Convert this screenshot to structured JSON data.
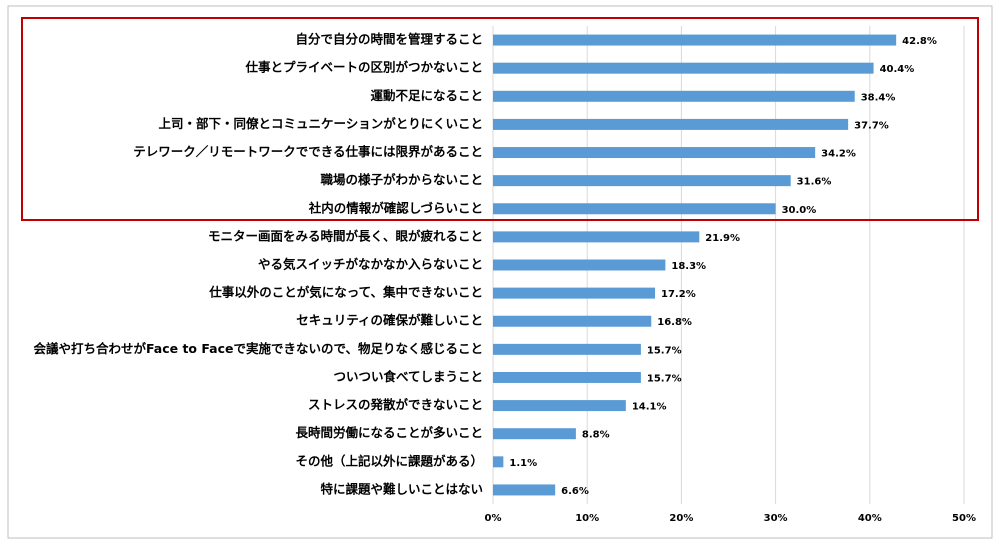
{
  "chart_data": {
    "type": "bar",
    "orientation": "horizontal",
    "categories": [
      "自分で自分の時間を管理すること",
      "仕事とプライベートの区別がつかないこと",
      "運動不足になること",
      "上司・部下・同僚とコミュニケーションがとりにくいこと",
      "テレワーク／リモートワークでできる仕事には限界があること",
      "職場の様子がわからないこと",
      "社内の情報が確認しづらいこと",
      "モニター画面をみる時間が長く、眼が疲れること",
      "やる気スイッチがなかなか入らないこと",
      "仕事以外のことが気になって、集中できないこと",
      "セキュリティの確保が難しいこと",
      "会議や打ち合わせがFace to Faceで実施できないので、物足りなく感じること",
      "ついつい食べてしまうこと",
      "ストレスの発散ができないこと",
      "長時間労働になることが多いこと",
      "その他（上記以外に課題がある）",
      "特に課題や難しいことはない"
    ],
    "values": [
      42.8,
      40.4,
      38.4,
      37.7,
      34.2,
      31.6,
      30.0,
      21.9,
      18.3,
      17.2,
      16.8,
      15.7,
      15.7,
      14.1,
      8.8,
      1.1,
      6.6
    ],
    "value_labels": [
      "42.8%",
      "40.4%",
      "38.4%",
      "37.7%",
      "34.2%",
      "31.6%",
      "30.0%",
      "21.9%",
      "18.3%",
      "17.2%",
      "16.8%",
      "15.7%",
      "15.7%",
      "14.1%",
      "8.8%",
      "1.1%",
      "6.6%"
    ],
    "color": "#5b9bd5",
    "xlim": [
      0,
      50
    ],
    "xticks": [
      {
        "value": 0,
        "label": "0%"
      },
      {
        "value": 10,
        "label": "10%"
      },
      {
        "value": 20,
        "label": "20%"
      },
      {
        "value": 30,
        "label": "30%"
      },
      {
        "value": 40,
        "label": "40%"
      },
      {
        "value": 50,
        "label": "50%"
      }
    ],
    "grid": true
  }
}
